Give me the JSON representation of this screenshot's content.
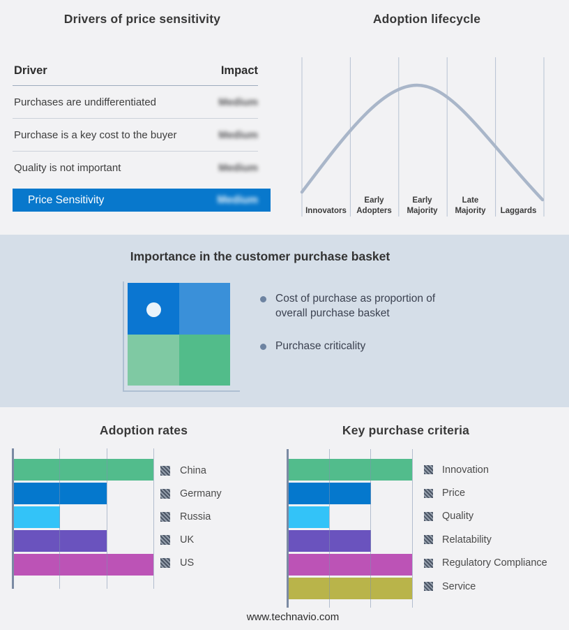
{
  "colors": {
    "accent_blue": "#0878cc",
    "band_background": "#d5dee8",
    "page_background": "#f2f2f4",
    "curve": "#a9b6c9",
    "gridline": "#b6c1d2",
    "axis": "#7b8aa3",
    "bullet_dot": "#6d83a1"
  },
  "drivers_panel": {
    "title": "Drivers of price sensitivity",
    "col_driver": "Driver",
    "col_impact": "Impact",
    "rows": [
      {
        "driver": "Purchases are undifferentiated",
        "impact": "Medium",
        "impact_blurred": true
      },
      {
        "driver": "Purchase is a key cost to the buyer",
        "impact": "Medium",
        "impact_blurred": true
      },
      {
        "driver": "Quality is not important",
        "impact": "Medium",
        "impact_blurred": true
      }
    ],
    "highlight": {
      "driver": "Price Sensitivity",
      "impact": "Medium",
      "impact_blurred": true
    }
  },
  "basket_panel": {
    "title": "Importance in the customer purchase basket",
    "bullets": [
      "Cost of purchase as proportion of overall purchase basket",
      "Purchase criticality"
    ],
    "quadrant": {
      "colors": [
        "#0b76d1",
        "#3a90d9",
        "#7fc9a3",
        "#52bc8a"
      ],
      "marker": "white dot in top-left quadrant"
    }
  },
  "footer": {
    "url": "www.technavio.com"
  },
  "chart_data": [
    {
      "id": "adoption-lifecycle",
      "type": "line",
      "title": "Adoption lifecycle",
      "x_categories": [
        "Innovators",
        "Early Adopters",
        "Early Majority",
        "Late Majority",
        "Laggards"
      ],
      "shape": "bell curve rising from Innovators, peaking in Early Majority, falling through Laggards",
      "ylabel": "",
      "grid": "vertical stage dividers",
      "curve_color": "#a9b6c9"
    },
    {
      "id": "adoption-rates",
      "type": "bar",
      "orientation": "horizontal",
      "title": "Adoption rates",
      "categories": [
        "China",
        "Germany",
        "Russia",
        "UK",
        "US"
      ],
      "values": [
        3,
        2,
        1,
        2,
        3
      ],
      "xlim": [
        0,
        3
      ],
      "grid": true,
      "legend_position": "right",
      "bar_colors": [
        "#52bc8c",
        "#0578cd",
        "#33c3f8",
        "#6a53be",
        "#bc53b6"
      ]
    },
    {
      "id": "key-purchase-criteria",
      "type": "bar",
      "orientation": "horizontal",
      "title": "Key purchase criteria",
      "categories": [
        "Innovation",
        "Price",
        "Quality",
        "Relatability",
        "Regulatory Compliance",
        "Service"
      ],
      "values": [
        3,
        2,
        1,
        2,
        3,
        3
      ],
      "xlim": [
        0,
        3
      ],
      "grid": true,
      "legend_position": "right",
      "bar_colors": [
        "#52bc8c",
        "#0578cd",
        "#33c3f8",
        "#6a53be",
        "#bc53b6",
        "#b9b44a"
      ]
    }
  ]
}
